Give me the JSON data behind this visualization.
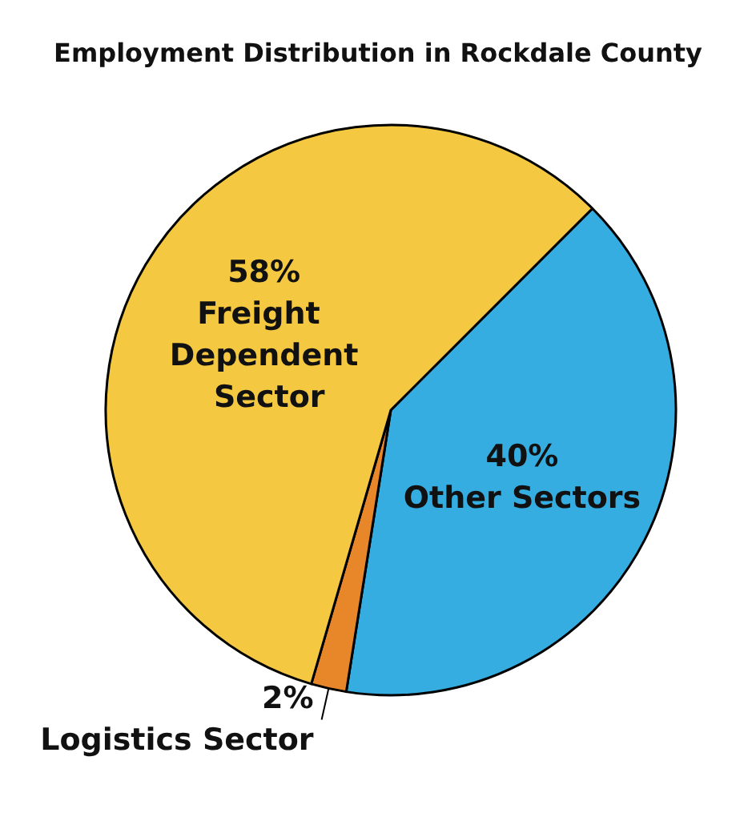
{
  "chart_data": {
    "type": "pie",
    "title": "Employment Distribution in Rockdale County",
    "categories": [
      "Other Sectors",
      "Logistics Sector",
      "Freight Dependent Sector"
    ],
    "values": [
      40,
      2,
      58
    ],
    "colors": [
      "#35ade0",
      "#e8862a",
      "#f5c842"
    ],
    "value_labels": [
      "40%",
      "2%",
      "58%"
    ],
    "legend": false
  }
}
